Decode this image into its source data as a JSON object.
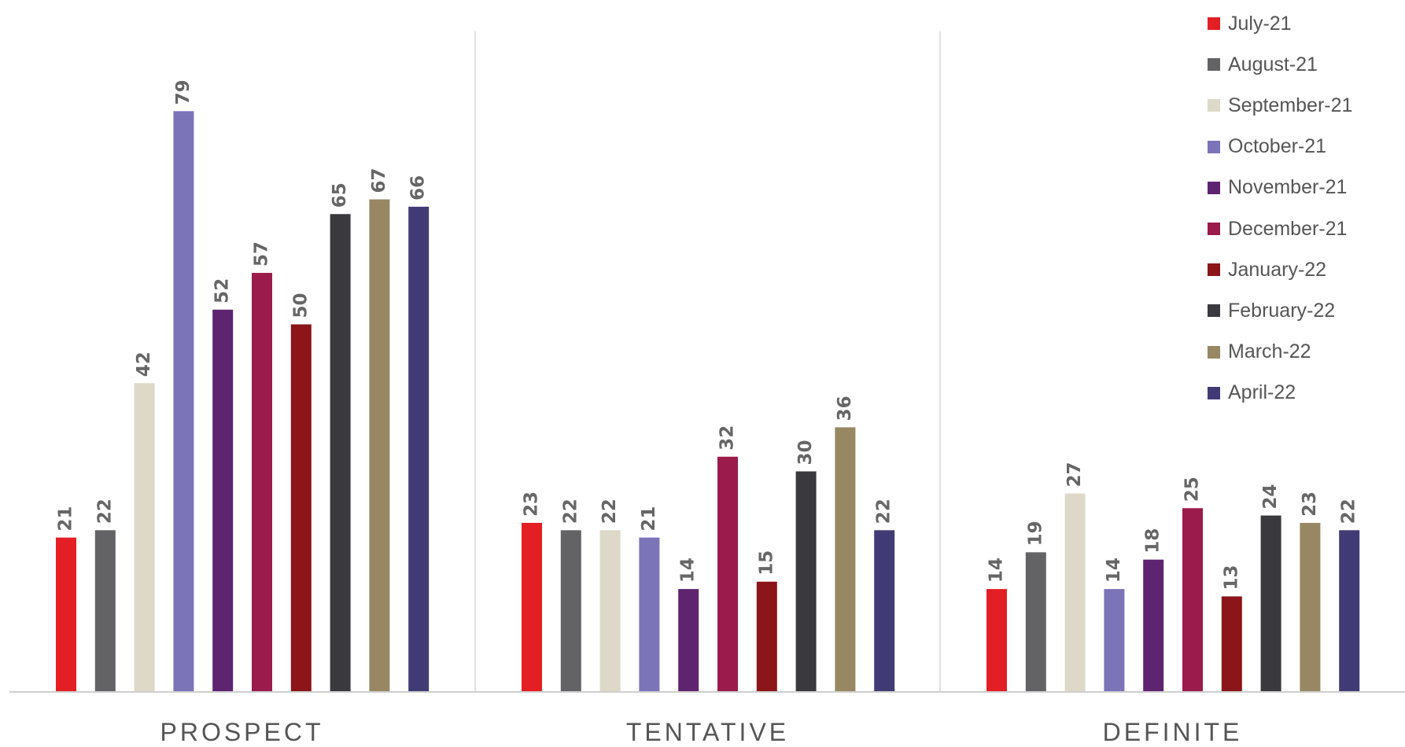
{
  "chart_data": {
    "type": "bar",
    "categories": [
      "PROSPECT",
      "TENTATIVE",
      "DEFINITE"
    ],
    "ylim": [
      0,
      90
    ],
    "grid": false,
    "legend_position": "top-right",
    "series": [
      {
        "name": "July-21",
        "color": "#e31e24",
        "values": [
          21,
          23,
          14
        ]
      },
      {
        "name": "August-21",
        "color": "#636366",
        "values": [
          22,
          22,
          19
        ]
      },
      {
        "name": "September-21",
        "color": "#ddd8c8",
        "values": [
          42,
          22,
          27
        ]
      },
      {
        "name": "October-21",
        "color": "#7b74b8",
        "values": [
          79,
          21,
          14
        ]
      },
      {
        "name": "November-21",
        "color": "#5e2470",
        "values": [
          52,
          14,
          18
        ]
      },
      {
        "name": "December-21",
        "color": "#9b1b4c",
        "values": [
          57,
          32,
          25
        ]
      },
      {
        "name": "January-22",
        "color": "#8b1519",
        "values": [
          50,
          15,
          13
        ]
      },
      {
        "name": "February-22",
        "color": "#3a3a3e",
        "values": [
          65,
          30,
          24
        ]
      },
      {
        "name": "March-22",
        "color": "#978863",
        "values": [
          67,
          36,
          23
        ]
      },
      {
        "name": "April-22",
        "color": "#413b75",
        "values": [
          66,
          22,
          22
        ]
      }
    ]
  }
}
